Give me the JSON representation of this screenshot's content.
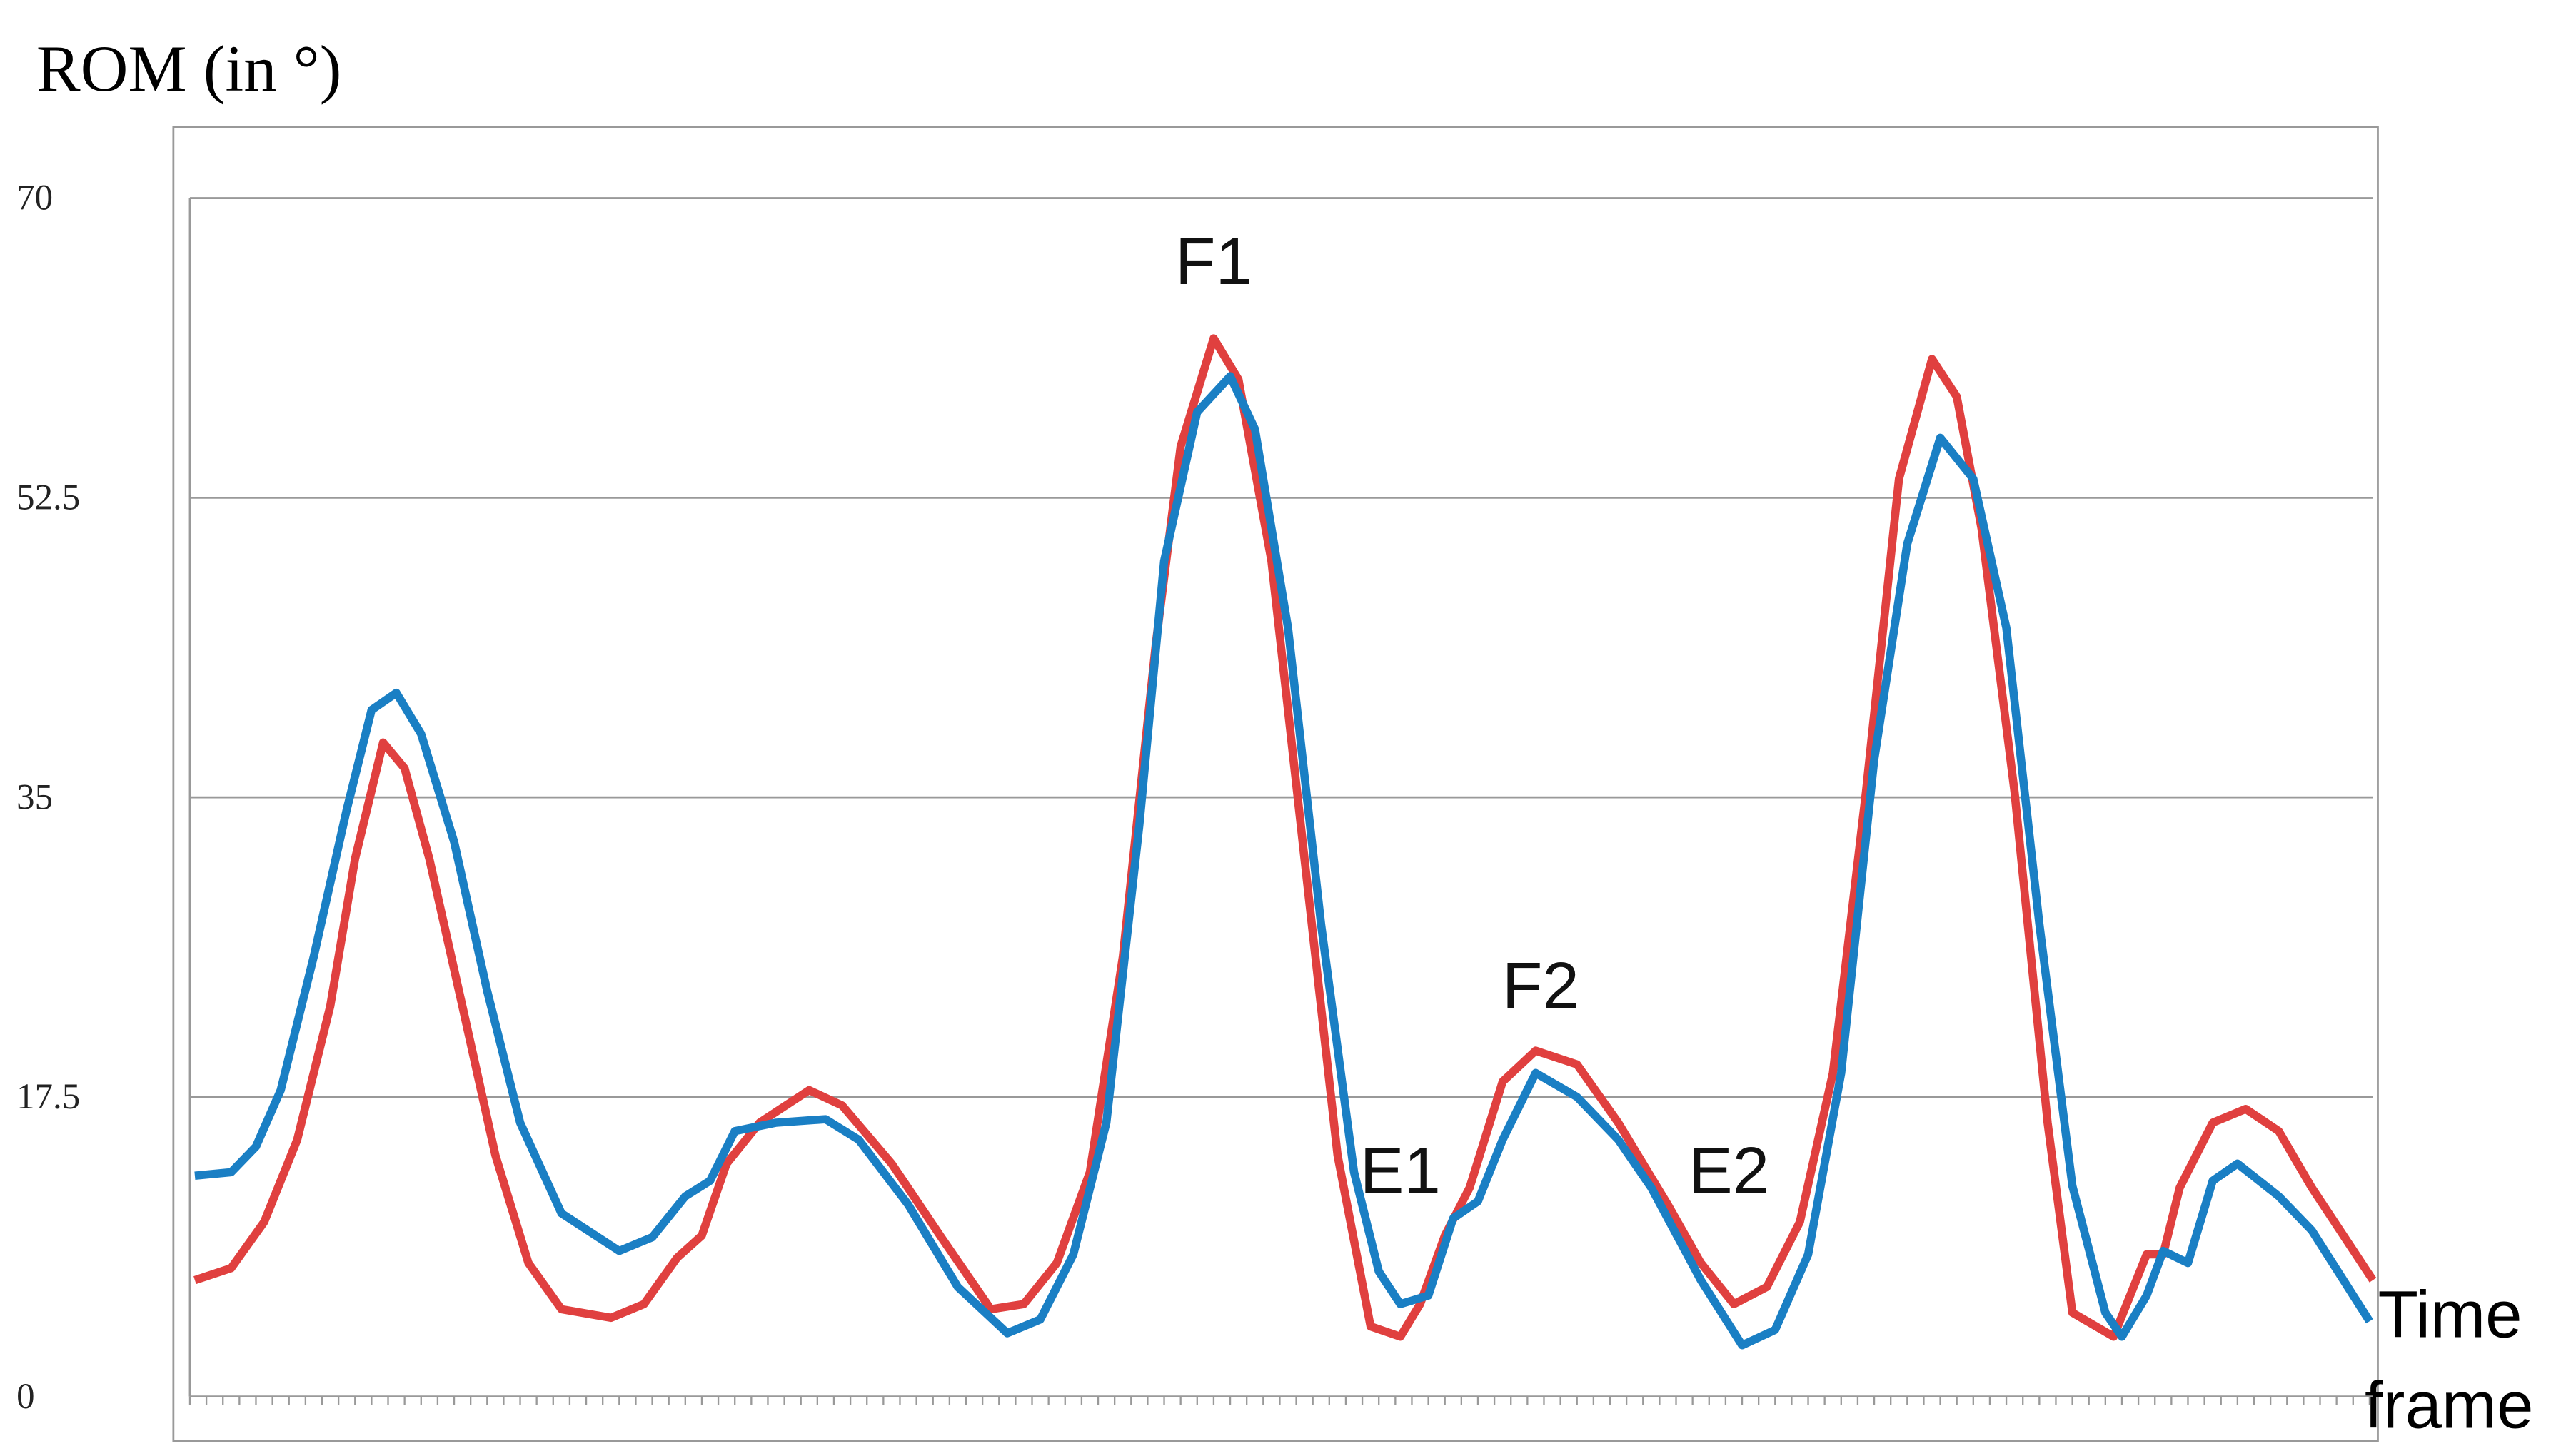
{
  "chart_data": {
    "type": "line",
    "y_label": "ROM (in °)",
    "x_label": [
      "Time",
      "frame"
    ],
    "ylim": [
      0,
      70
    ],
    "yticks": [
      0,
      17.5,
      35,
      52.5,
      70
    ],
    "grid": true,
    "xlim": [
      0,
      132.2
    ],
    "xticks": [
      0,
      1,
      2,
      3,
      4,
      5,
      6,
      7,
      8,
      9,
      10,
      11,
      12,
      13,
      14,
      15,
      16,
      17,
      18,
      19,
      20,
      21,
      22,
      23,
      24,
      25,
      26,
      27,
      28,
      29,
      30,
      31,
      32,
      33,
      34,
      35,
      36,
      37,
      38,
      39,
      40,
      41,
      42,
      43,
      44,
      45,
      46,
      47,
      48,
      49,
      50,
      51,
      52,
      53,
      54,
      55,
      56,
      57,
      58,
      59,
      60,
      61,
      62,
      63,
      64,
      65,
      66,
      67,
      68,
      69,
      70,
      71,
      72,
      73,
      74,
      75,
      76,
      77,
      78,
      79,
      80,
      81,
      82,
      83,
      84,
      85,
      86,
      87,
      88,
      89,
      90,
      91,
      92,
      93,
      94,
      95,
      96,
      97,
      98,
      99,
      100,
      101,
      102,
      103,
      104,
      105,
      106,
      107,
      108,
      109,
      110,
      111,
      112,
      113,
      114,
      115,
      116,
      117,
      118,
      119,
      120,
      121,
      122,
      123,
      124,
      125,
      126,
      127,
      128,
      129,
      130,
      131,
      132
    ],
    "annotations": [
      "F1",
      "E1",
      "F2",
      "E2"
    ],
    "series": [
      {
        "color": "#e0403f",
        "x": [
          0.3,
          2.5,
          4.5,
          6.5,
          8.5,
          10,
          11.7,
          13,
          14.5,
          16.5,
          18.5,
          20.5,
          22.5,
          25.5,
          27.5,
          29.5,
          31,
          32.5,
          34.5,
          37.5,
          39.5,
          42.5,
          45.5,
          48.5,
          50.5,
          52.5,
          54.5,
          56.5,
          58.5,
          60,
          62,
          63.5,
          65.5,
          67.5,
          69.5,
          71.5,
          73.3,
          74.5,
          76,
          77.5,
          79.5,
          81.5,
          84,
          86.5,
          89.5,
          91.5,
          93.5,
          95.5,
          97.5,
          99.5,
          101.5,
          103.5,
          105.5,
          107,
          108.5,
          110.5,
          112.5,
          114,
          116.5,
          118.5,
          119.5,
          120.5,
          122.5,
          124.5,
          126.5,
          128.5,
          132.2
        ],
        "values": [
          6.8,
          7.5,
          10.2,
          15,
          22.8,
          31.4,
          38.2,
          36.7,
          31.4,
          22.8,
          14.1,
          7.8,
          5.1,
          4.6,
          5.4,
          8.1,
          9.4,
          13.6,
          16,
          17.9,
          17,
          13.6,
          9.3,
          5.1,
          5.4,
          7.8,
          13.1,
          25.7,
          44,
          55.5,
          61.8,
          59.4,
          48.8,
          31.4,
          14.1,
          4.1,
          3.5,
          5.4,
          9.4,
          12.2,
          18.4,
          20.2,
          19.4,
          16,
          11.2,
          7.8,
          5.4,
          6.4,
          10.2,
          18.9,
          35.3,
          53.6,
          60.6,
          58.4,
          50.7,
          35.3,
          16,
          4.9,
          3.5,
          8.3,
          8.3,
          12.2,
          16,
          16.8,
          15.5,
          12.2,
          6.8
        ]
      },
      {
        "color": "#1a7fc4",
        "x": [
          0.3,
          2.5,
          4,
          5.5,
          7.5,
          9.5,
          11,
          12.5,
          14,
          16,
          18,
          20,
          22.5,
          26,
          28,
          30,
          31.5,
          33,
          35.5,
          38.5,
          40.5,
          43.5,
          46.5,
          49.5,
          51.5,
          53.5,
          55.5,
          57.5,
          59,
          61,
          63,
          64.5,
          66.5,
          68.5,
          70.5,
          72,
          73.3,
          75,
          76.5,
          78,
          79.5,
          81.5,
          84,
          86.5,
          88.5,
          91.5,
          94,
          96,
          98,
          100,
          102,
          104,
          106,
          108,
          110,
          112,
          114,
          116,
          117,
          118.5,
          119.5,
          121,
          122.5,
          124,
          126.5,
          128.5,
          132
        ],
        "values": [
          12.9,
          13.1,
          14.6,
          17.9,
          25.7,
          34.3,
          40.1,
          41.1,
          38.7,
          32.4,
          23.7,
          16,
          10.7,
          8.5,
          9.3,
          11.7,
          12.6,
          15.5,
          16,
          16.2,
          15,
          11.2,
          6.4,
          3.7,
          4.5,
          8.3,
          16,
          33.4,
          48.8,
          57.5,
          59.6,
          56.5,
          44.9,
          27.6,
          13.1,
          7.3,
          5.4,
          5.9,
          10.4,
          11.4,
          15,
          18.9,
          17.5,
          15,
          12.2,
          6.8,
          3,
          3.9,
          8.3,
          18.9,
          37.2,
          49.8,
          56,
          53.6,
          44.9,
          27.6,
          12.3,
          4.9,
          3.5,
          5.9,
          8.5,
          7.8,
          12.6,
          13.6,
          11.7,
          9.7,
          4.4
        ]
      }
    ]
  }
}
